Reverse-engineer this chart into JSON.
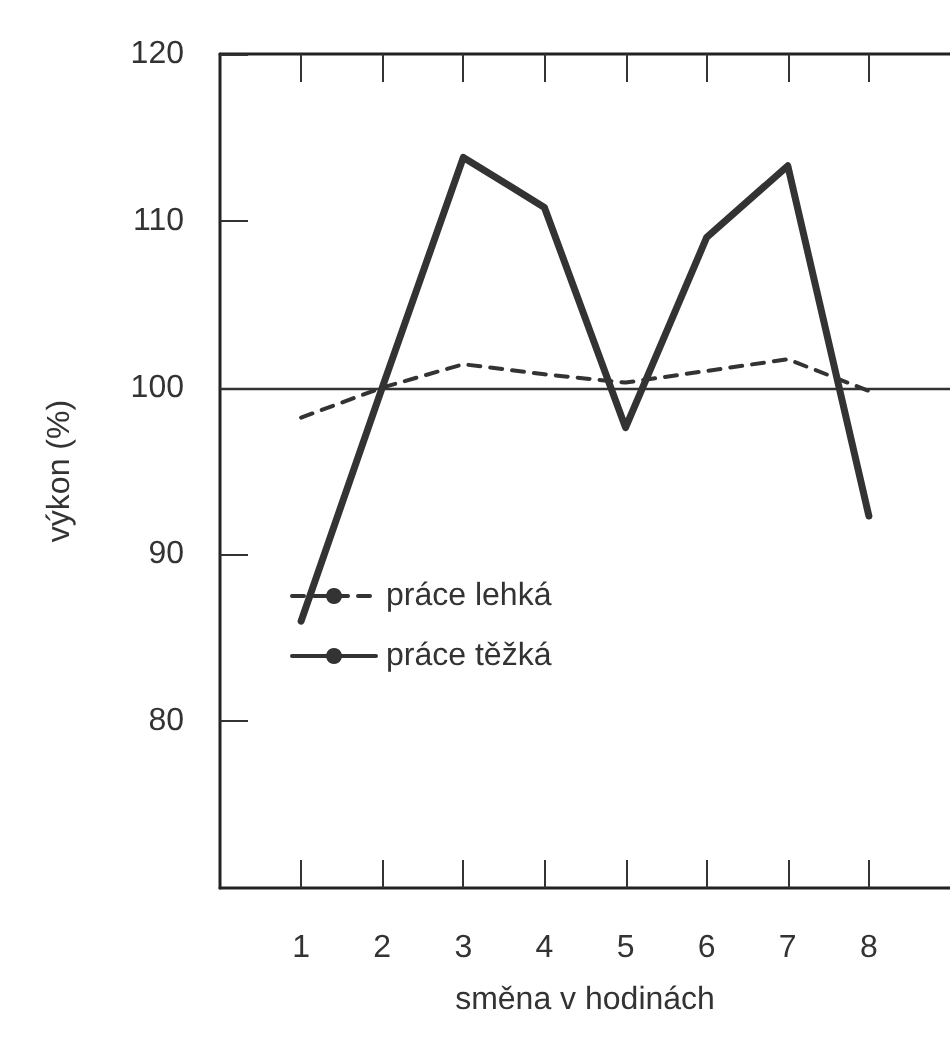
{
  "chart_data": {
    "type": "line",
    "xlabel": "směna v hodinách",
    "ylabel": "výkon (%)",
    "x": [
      1,
      2,
      3,
      4,
      5,
      6,
      7,
      8
    ],
    "series": [
      {
        "name": "práce lehká",
        "color": "#333333",
        "line_style": "dashed",
        "values": [
          98.2,
          100,
          101.4,
          100.8,
          100.3,
          101,
          101.7,
          99.8
        ]
      },
      {
        "name": "práce těžká",
        "color": "#333333",
        "line_style": "solid",
        "values": [
          86,
          100,
          113.8,
          110.8,
          97.6,
          109,
          113.3,
          92.3
        ]
      }
    ],
    "xlim": [
      0,
      9
    ],
    "xticks": [
      1,
      2,
      3,
      4,
      5,
      6,
      7,
      8
    ],
    "ylim": [
      70,
      120
    ],
    "yticks": [
      80,
      90,
      100,
      110,
      120
    ],
    "ref_lines": [
      {
        "axis": "y",
        "value": 100,
        "color": "#333333"
      }
    ],
    "grid": false,
    "legend": "left",
    "marker": "none"
  }
}
